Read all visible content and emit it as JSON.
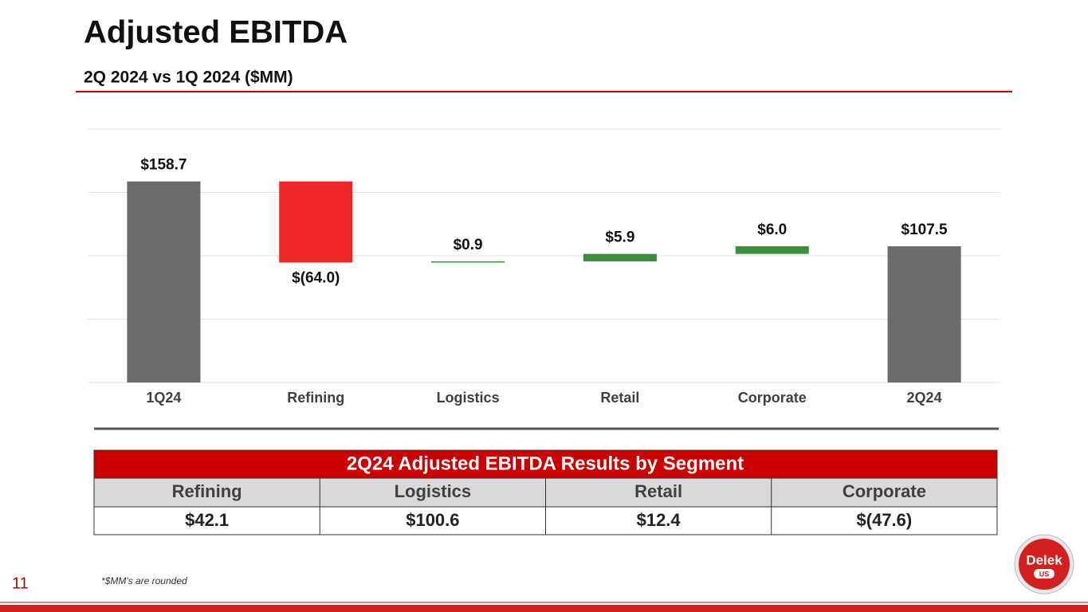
{
  "title": "Adjusted EBITDA",
  "subtitle": "2Q 2024 vs 1Q 2024 ($MM)",
  "chart_data": {
    "type": "waterfall",
    "categories": [
      "1Q24",
      "Refining",
      "Logistics",
      "Retail",
      "Corporate",
      "2Q24"
    ],
    "values": [
      158.7,
      -64.0,
      0.9,
      5.9,
      6.0,
      107.5
    ],
    "value_labels": [
      "$158.7",
      "$(64.0)",
      "$0.9",
      "$5.9",
      "$6.0",
      "$107.5"
    ],
    "totals": [
      true,
      false,
      false,
      false,
      false,
      true
    ],
    "colors": {
      "total": "#6b6b6b",
      "decrease": "#ee2626",
      "increase": "#3a8f3a"
    },
    "ylim": [
      0,
      200
    ],
    "yticks": [
      0,
      50,
      100,
      150,
      200
    ],
    "grid": true
  },
  "table": {
    "title": "2Q24 Adjusted EBITDA Results by Segment",
    "header": [
      "Refining",
      "Logistics",
      "Retail",
      "Corporate"
    ],
    "rows": [
      [
        "$42.1",
        "$100.6",
        "$12.4",
        "$(47.6)"
      ]
    ]
  },
  "footnote": "*$MM's are rounded",
  "page_number": "11",
  "logo": {
    "name": "Delek",
    "sub": "US"
  }
}
